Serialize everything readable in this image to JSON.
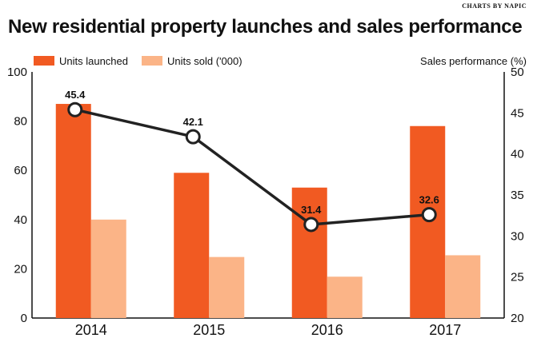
{
  "credit": "CHARTS BY NAPIC",
  "chart_data": {
    "type": "bar",
    "title": "New residential property launches and sales performance",
    "categories": [
      "2014",
      "2015",
      "2016",
      "2017"
    ],
    "series": [
      {
        "name": "Units launched",
        "type": "bar",
        "axis": "left",
        "color": "#f15a22",
        "values": [
          87,
          59,
          53,
          78
        ]
      },
      {
        "name": "Units sold ('000)",
        "type": "bar",
        "axis": "left",
        "color": "#fbb487",
        "values": [
          40,
          24.8,
          16.8,
          25.5
        ]
      },
      {
        "name": "Sales performance (%)",
        "type": "line",
        "axis": "right",
        "color": "#222222",
        "values": [
          45.4,
          42.1,
          31.4,
          32.6
        ],
        "labels": [
          "45.4",
          "42.1",
          "31.4",
          "32.6"
        ]
      }
    ],
    "y_left": {
      "ylim": [
        0,
        100
      ],
      "ticks": [
        "0",
        "20",
        "40",
        "60",
        "80",
        "100"
      ]
    },
    "y_right": {
      "label": "Sales performance (%)",
      "ylim": [
        20,
        50
      ],
      "ticks": [
        "20",
        "25",
        "30",
        "35",
        "40",
        "45",
        "50"
      ]
    },
    "legend_position": "top-left"
  }
}
